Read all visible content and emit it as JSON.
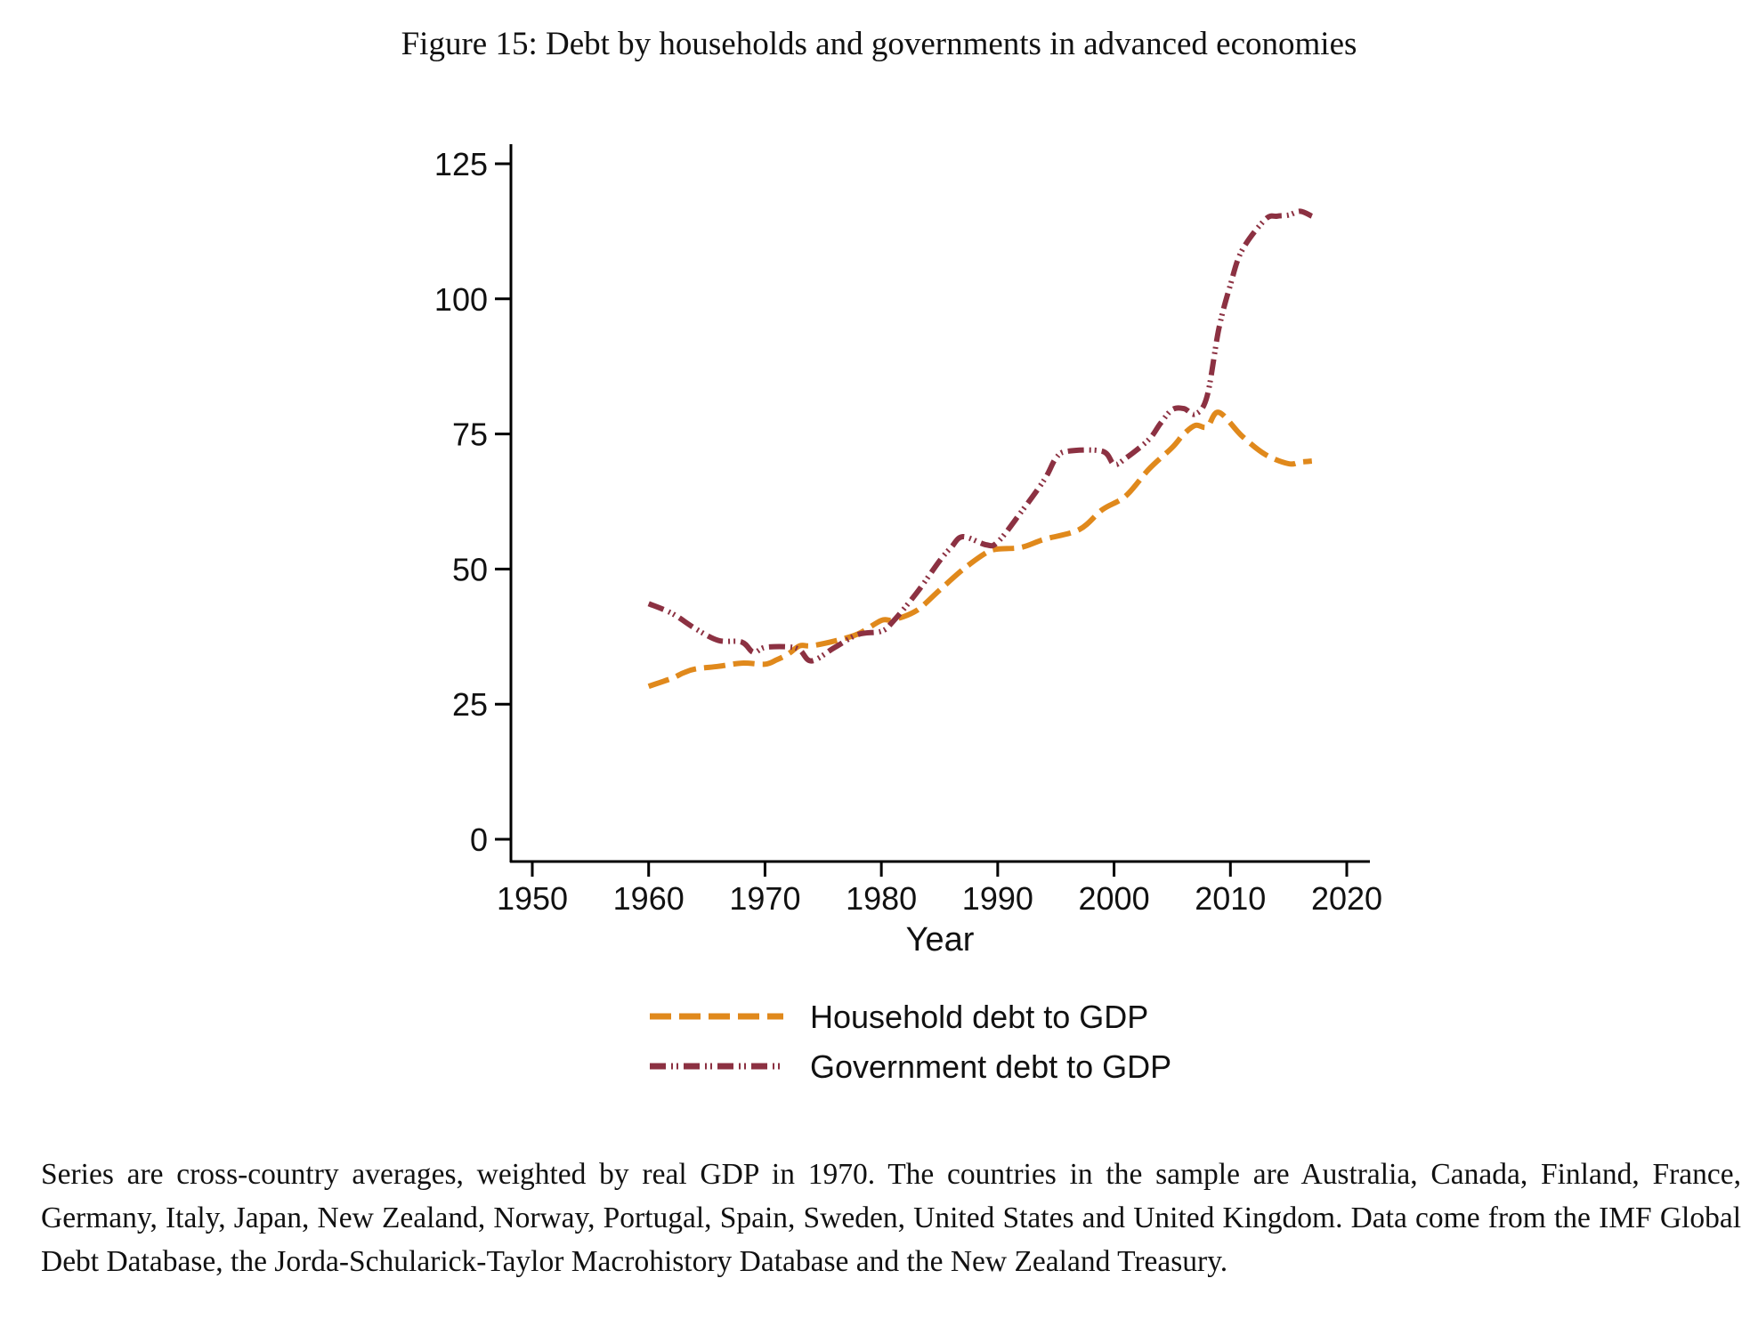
{
  "figure": {
    "title": "Figure 15: Debt by households and governments in advanced economies",
    "footnote": "Series are cross-country averages, weighted by real GDP in 1970.  The countries in the sample are Australia, Canada, Finland, France, Germany, Italy, Japan, New Zealand, Norway, Portugal, Spain, Sweden, United States and United Kingdom. Data come from the IMF Global Debt Database, the Jorda-Schularick-Taylor Macrohistory Database and the New Zealand Treasury."
  },
  "chart_data": {
    "type": "line",
    "title": "Figure 15: Debt by households and governments in advanced economies",
    "xlabel": "Year",
    "ylabel": "",
    "xlim": [
      1950,
      2020
    ],
    "ylim": [
      0,
      125
    ],
    "xticks": [
      1950,
      1960,
      1970,
      1980,
      1990,
      2000,
      2010,
      2020
    ],
    "yticks": [
      0,
      25,
      50,
      75,
      100,
      125
    ],
    "xtick_labels": [
      "1950",
      "1960",
      "1970",
      "1980",
      "1990",
      "2000",
      "2010",
      "2020"
    ],
    "ytick_labels": [
      "0",
      "25",
      "50",
      "75",
      "100",
      "125"
    ],
    "grid": false,
    "legend_position": "bottom",
    "series": [
      {
        "name": "Household debt to GDP",
        "color": "#E0891C",
        "style": "dash",
        "x": [
          1960,
          1962,
          1963,
          1964,
          1966,
          1968,
          1970,
          1971,
          1972,
          1973,
          1974,
          1976,
          1978,
          1980,
          1981,
          1983,
          1985,
          1987,
          1989,
          1990,
          1992,
          1994,
          1997,
          1999,
          2001,
          2003,
          2005,
          2006,
          2007,
          2008,
          2009,
          2011,
          2013,
          2015,
          2016,
          2017
        ],
        "values": [
          28.3,
          29.8,
          30.8,
          31.5,
          32.0,
          32.6,
          32.4,
          33.2,
          34.3,
          35.8,
          35.8,
          36.7,
          38.0,
          40.5,
          40.6,
          42.3,
          46.1,
          49.9,
          53.0,
          53.7,
          54.0,
          55.5,
          57.3,
          61.0,
          63.5,
          68.5,
          72.5,
          75.0,
          76.6,
          76.3,
          79.0,
          74.6,
          71.2,
          69.5,
          69.8,
          70.0
        ]
      },
      {
        "name": "Government debt to GDP",
        "color": "#8C3142",
        "style": "dash-dot-dot",
        "x": [
          1960,
          1962,
          1964,
          1966,
          1968,
          1969,
          1970,
          1972,
          1973,
          1974,
          1976,
          1978,
          1980,
          1981,
          1983,
          1985,
          1986,
          1987,
          1989,
          1990,
          1992,
          1994,
          1995,
          1996,
          1999,
          2000,
          2001,
          2003,
          2004,
          2005,
          2006,
          2007,
          2008,
          2009,
          2010,
          2011,
          2013,
          2014,
          2015,
          2016,
          2017
        ],
        "values": [
          43.6,
          41.8,
          39.0,
          36.8,
          36.5,
          34.6,
          35.5,
          35.6,
          35.0,
          33.0,
          35.5,
          37.9,
          38.5,
          40.3,
          45.5,
          51.5,
          54.0,
          56.0,
          54.5,
          55.0,
          60.5,
          66.5,
          70.5,
          71.8,
          71.8,
          69.4,
          70.5,
          74.0,
          77.0,
          79.5,
          79.7,
          78.7,
          82.0,
          94.4,
          102.6,
          109.0,
          114.7,
          115.3,
          115.5,
          116.2,
          115.3
        ]
      }
    ]
  }
}
